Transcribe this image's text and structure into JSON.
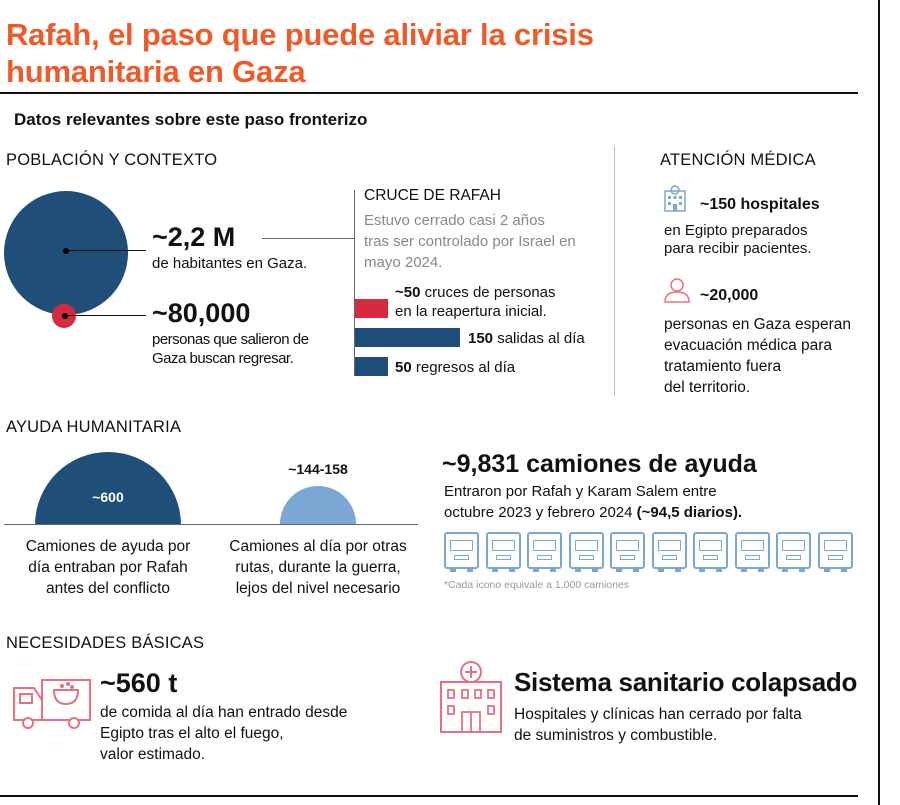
{
  "header": {
    "title_line1": "Rafah, el paso que puede aliviar la crisis",
    "title_line2": "humanitaria en Gaza",
    "subtitle": "Datos relevantes sobre este paso fronterizo"
  },
  "poblacion": {
    "heading": "POBLACIÓN Y CONTEXTO",
    "habitantes_value": "~2,2 M",
    "habitantes_text": "de habitantes en Gaza.",
    "regreso_value": "~80,000",
    "regreso_text_1": "personas que salieron de",
    "regreso_text_2": "Gaza buscan regresar."
  },
  "cruce": {
    "heading": "CRUCE DE RAFAH",
    "desc_1": "Estuvo cerrado casi 2 años",
    "desc_2": "tras ser controlado por Israel en",
    "desc_3": "mayo 2024.",
    "bars": [
      {
        "value": "~50",
        "text_1": " cruces de personas",
        "text_2": "en la reapertura inicial.",
        "color": "#d62b3f"
      },
      {
        "value": "150",
        "text_1": " salidas al día",
        "color": "#1f4e79"
      },
      {
        "value": "50",
        "text_1": " regresos al día",
        "color": "#1f4e79"
      }
    ]
  },
  "medica": {
    "heading": "ATENCIÓN MÉDICA",
    "hospitales_value": "~150 hospitales",
    "hospitales_text_1": "en Egipto preparados",
    "hospitales_text_2": "para recibir pacientes.",
    "personas_value": "~20,000",
    "personas_text_1": "personas en Gaza esperan",
    "personas_text_2": "evacuación médica para",
    "personas_text_3": "tratamiento fuera",
    "personas_text_4": "del territorio."
  },
  "ayuda": {
    "heading": "AYUDA HUMANITARIA",
    "antes_value": "~600",
    "antes_text_1": "Camiones de ayuda por",
    "antes_text_2": "día entraban por Rafah",
    "antes_text_3": "antes del conflicto",
    "guerra_value": "~144-158",
    "guerra_text_1": "Camiones al día por otras",
    "guerra_text_2": "rutas, durante la guerra,",
    "guerra_text_3": "lejos del nivel necesario",
    "camiones_value": "~9,831 camiones de ayuda",
    "camiones_text_1": "Entraron por Rafah y Karam Salem entre",
    "camiones_text_2": "octubre 2023 y febrero 2024 ",
    "camiones_text_bold": "(~94,5 diarios).",
    "truck_count": 10,
    "note": "*Cada icono equivale a 1.000 camiones"
  },
  "necesidades": {
    "heading": "NECESIDADES BÁSICAS",
    "comida_value": "~560 t",
    "comida_text_1": "de comida al día han entrado desde",
    "comida_text_2": "Egipto tras el alto el fuego,",
    "comida_text_3": "valor estimado.",
    "sistema_title": "Sistema sanitario colapsado",
    "sistema_text_1": "Hospitales y clínicas han cerrado por falta",
    "sistema_text_2": "de suministros y combustible."
  },
  "colors": {
    "accent": "#f05a28",
    "navy": "#1f4e79",
    "red": "#d62b3f",
    "light_blue": "#7ba7d4",
    "pink": "#e8707e"
  }
}
